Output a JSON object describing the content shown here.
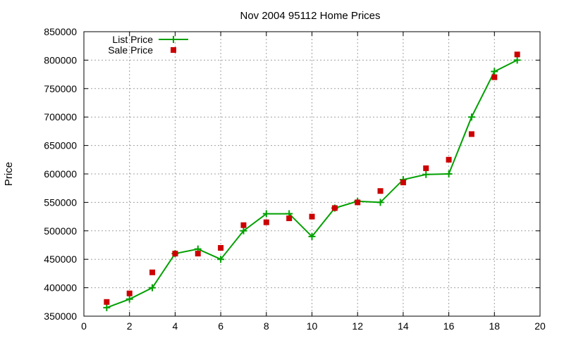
{
  "chart_data": {
    "type": "line",
    "title": "Nov 2004 95112 Home Prices",
    "xlabel": "",
    "ylabel": "Price",
    "xlim": [
      0,
      20
    ],
    "ylim": [
      350000,
      850000
    ],
    "xticks": [
      0,
      2,
      4,
      6,
      8,
      10,
      12,
      14,
      16,
      18,
      20
    ],
    "yticks": [
      350000,
      400000,
      450000,
      500000,
      550000,
      600000,
      650000,
      700000,
      750000,
      800000,
      850000
    ],
    "grid": true,
    "legend_position": "top-left",
    "series": [
      {
        "name": "List Price",
        "style": "line-with-plus-markers",
        "color": "#00a000",
        "x": [
          1,
          2,
          3,
          4,
          5,
          6,
          7,
          8,
          9,
          10,
          11,
          12,
          13,
          14,
          15,
          16,
          17,
          18,
          19
        ],
        "y": [
          365000,
          380000,
          400000,
          460000,
          468000,
          450000,
          500000,
          530000,
          530000,
          490000,
          540000,
          552000,
          550000,
          590000,
          599000,
          600000,
          700000,
          780000,
          800000
        ]
      },
      {
        "name": "Sale Price",
        "style": "square-markers",
        "color": "#cc0000",
        "x": [
          1,
          2,
          3,
          4,
          5,
          6,
          7,
          8,
          9,
          10,
          11,
          12,
          13,
          14,
          15,
          16,
          17,
          18,
          19
        ],
        "y": [
          375000,
          390000,
          427000,
          460000,
          460000,
          470000,
          510000,
          515000,
          522000,
          525000,
          540000,
          550000,
          570000,
          585000,
          610000,
          625000,
          670000,
          770000,
          810000
        ]
      }
    ]
  }
}
